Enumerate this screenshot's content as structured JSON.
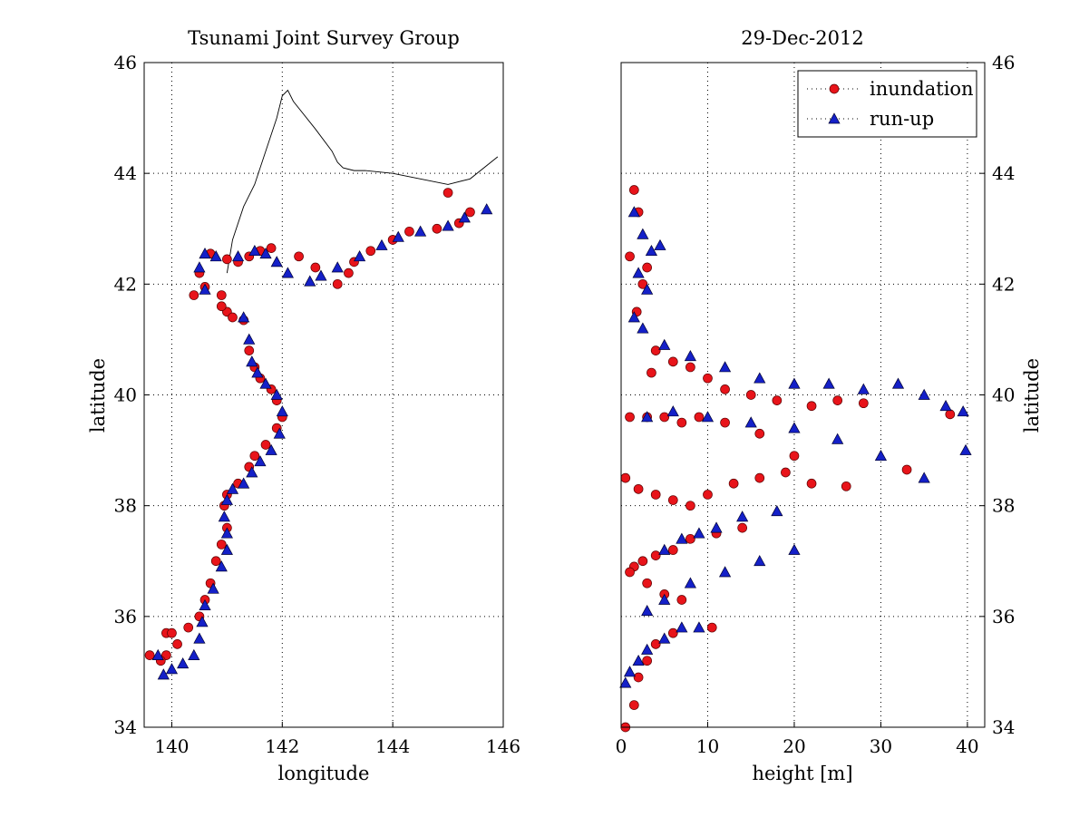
{
  "colors": {
    "inundation": "#e8141a",
    "runup": "#1420c8",
    "marker_edge": "#000000"
  },
  "chart_data": [
    {
      "type": "scatter",
      "title": "Tsunami Joint Survey Group",
      "xlabel": "longitude",
      "ylabel": "latitude",
      "xlim": [
        139.5,
        146
      ],
      "ylim": [
        34,
        46
      ],
      "xticks": [
        "140",
        "142",
        "144",
        "146"
      ],
      "yticks": [
        "34",
        "36",
        "38",
        "40",
        "42",
        "44",
        "46"
      ],
      "grid": true,
      "series": [
        {
          "name": "coastline",
          "style": "line",
          "x": [
            141.0,
            141.1,
            141.3,
            141.5,
            141.7,
            141.9,
            142.0,
            142.1,
            142.2,
            142.6,
            142.9,
            143.0,
            143.1,
            143.3,
            143.5,
            144.0,
            144.5,
            145.0,
            145.4,
            145.9
          ],
          "y": [
            42.2,
            42.8,
            43.4,
            43.8,
            44.4,
            45.0,
            45.4,
            45.5,
            45.3,
            44.8,
            44.4,
            44.2,
            44.1,
            44.05,
            44.05,
            44.0,
            43.9,
            43.8,
            43.9,
            44.3
          ]
        },
        {
          "name": "inundation",
          "style": "marker",
          "marker": "circle",
          "x": [
            145.0,
            145.4,
            145.2,
            144.8,
            144.3,
            144.0,
            143.6,
            143.3,
            143.2,
            143.0,
            142.6,
            142.3,
            141.8,
            141.6,
            141.4,
            141.2,
            141.0,
            140.7,
            140.5,
            140.4,
            140.6,
            140.9,
            141.0,
            140.9,
            141.1,
            141.3,
            141.4,
            141.5,
            141.6,
            141.8,
            141.9,
            142.0,
            141.9,
            141.7,
            141.5,
            141.4,
            141.2,
            141.0,
            140.95,
            141.0,
            140.9,
            140.8,
            140.7,
            140.6,
            140.5,
            140.3,
            140.1,
            139.9,
            139.8,
            139.6,
            139.9,
            140.0
          ],
          "y": [
            43.65,
            43.3,
            43.1,
            43.0,
            42.95,
            42.8,
            42.6,
            42.4,
            42.2,
            42.0,
            42.3,
            42.5,
            42.65,
            42.6,
            42.5,
            42.4,
            42.45,
            42.55,
            42.2,
            41.8,
            41.95,
            41.8,
            41.5,
            41.6,
            41.4,
            41.35,
            40.8,
            40.5,
            40.3,
            40.1,
            39.9,
            39.6,
            39.4,
            39.1,
            38.9,
            38.7,
            38.4,
            38.2,
            38.0,
            37.6,
            37.3,
            37.0,
            36.6,
            36.3,
            36.0,
            35.8,
            35.5,
            35.3,
            35.2,
            35.3,
            35.7,
            35.7
          ]
        },
        {
          "name": "run-up",
          "style": "marker",
          "marker": "triangle",
          "x": [
            145.7,
            145.3,
            145.0,
            144.5,
            144.1,
            143.8,
            143.4,
            143.0,
            142.7,
            142.5,
            142.1,
            141.9,
            141.7,
            141.5,
            141.2,
            140.8,
            140.6,
            140.5,
            140.6,
            141.3,
            141.4,
            141.45,
            141.55,
            141.7,
            141.9,
            142.0,
            141.95,
            141.8,
            141.6,
            141.45,
            141.3,
            141.1,
            141.0,
            140.95,
            141.0,
            141.0,
            140.9,
            140.75,
            140.6,
            140.55,
            140.5,
            140.4,
            140.2,
            140.0,
            139.85,
            139.75
          ],
          "y": [
            43.35,
            43.2,
            43.05,
            42.95,
            42.85,
            42.7,
            42.5,
            42.3,
            42.15,
            42.05,
            42.2,
            42.4,
            42.55,
            42.6,
            42.5,
            42.5,
            42.55,
            42.3,
            41.9,
            41.4,
            41.0,
            40.6,
            40.4,
            40.2,
            40.0,
            39.7,
            39.3,
            39.0,
            38.8,
            38.6,
            38.4,
            38.3,
            38.1,
            37.8,
            37.5,
            37.2,
            36.9,
            36.5,
            36.2,
            35.9,
            35.6,
            35.3,
            35.15,
            35.05,
            34.95,
            35.3
          ]
        }
      ]
    },
    {
      "type": "scatter",
      "title": "29-Dec-2012",
      "xlabel": "height [m]",
      "ylabel": "latitude",
      "xlim": [
        0,
        42
      ],
      "ylim": [
        34,
        46
      ],
      "xticks": [
        "0",
        "10",
        "20",
        "30",
        "40"
      ],
      "yticks": [
        "34",
        "36",
        "38",
        "40",
        "42",
        "44",
        "46"
      ],
      "grid": true,
      "legend": {
        "position": "top-right",
        "entries": [
          "inundation",
          "run-up"
        ]
      },
      "series": [
        {
          "name": "inundation",
          "marker": "circle",
          "x": [
            1.5,
            2.0,
            1.0,
            3.0,
            2.5,
            1.8,
            4.0,
            6.0,
            3.5,
            8.0,
            10.0,
            12.0,
            15.0,
            18.0,
            22.0,
            25.0,
            28.0,
            38.0,
            33.0,
            26.0,
            20.0,
            16.0,
            12.0,
            9.0,
            7.0,
            5.0,
            3.0,
            1.0,
            0.5,
            2.0,
            4.0,
            6.0,
            8.0,
            10.0,
            13.0,
            16.0,
            19.0,
            22.0,
            14.0,
            11.0,
            8.0,
            6.0,
            4.0,
            2.5,
            1.5,
            1.0,
            3.0,
            5.0,
            7.0,
            10.5,
            6.0,
            4.0,
            3.0,
            2.0,
            1.5,
            0.5
          ],
          "y": [
            43.7,
            43.3,
            42.5,
            42.3,
            42.0,
            41.5,
            40.8,
            40.6,
            40.4,
            40.5,
            40.3,
            40.1,
            40.0,
            39.9,
            39.8,
            39.9,
            39.85,
            39.65,
            38.65,
            38.35,
            38.9,
            39.3,
            39.5,
            39.6,
            39.5,
            39.6,
            39.6,
            39.6,
            38.5,
            38.3,
            38.2,
            38.1,
            38.0,
            38.2,
            38.4,
            38.5,
            38.6,
            38.4,
            37.6,
            37.5,
            37.4,
            37.2,
            37.1,
            37.0,
            36.9,
            36.8,
            36.6,
            36.4,
            36.3,
            35.8,
            35.7,
            35.5,
            35.2,
            34.9,
            34.4,
            34.0
          ]
        },
        {
          "name": "run-up",
          "marker": "triangle",
          "x": [
            1.5,
            2.5,
            3.5,
            4.5,
            2.0,
            3.0,
            1.5,
            2.5,
            5.0,
            8.0,
            12.0,
            16.0,
            20.0,
            24.0,
            28.0,
            32.0,
            35.0,
            37.5,
            39.5,
            39.8,
            35.0,
            30.0,
            25.0,
            20.0,
            15.0,
            10.0,
            6.0,
            3.0,
            18.0,
            14.0,
            11.0,
            9.0,
            7.0,
            5.0,
            20.0,
            16.0,
            12.0,
            8.0,
            5.0,
            3.0,
            9.0,
            7.0,
            5.0,
            3.0,
            2.0,
            1.0,
            0.5
          ],
          "y": [
            43.3,
            42.9,
            42.6,
            42.7,
            42.2,
            41.9,
            41.4,
            41.2,
            40.9,
            40.7,
            40.5,
            40.3,
            40.2,
            40.2,
            40.1,
            40.2,
            40.0,
            39.8,
            39.7,
            39.0,
            38.5,
            38.9,
            39.2,
            39.4,
            39.5,
            39.6,
            39.7,
            39.6,
            37.9,
            37.8,
            37.6,
            37.5,
            37.4,
            37.2,
            37.2,
            37.0,
            36.8,
            36.6,
            36.3,
            36.1,
            35.8,
            35.8,
            35.6,
            35.4,
            35.2,
            35.0,
            34.8
          ]
        }
      ]
    }
  ]
}
